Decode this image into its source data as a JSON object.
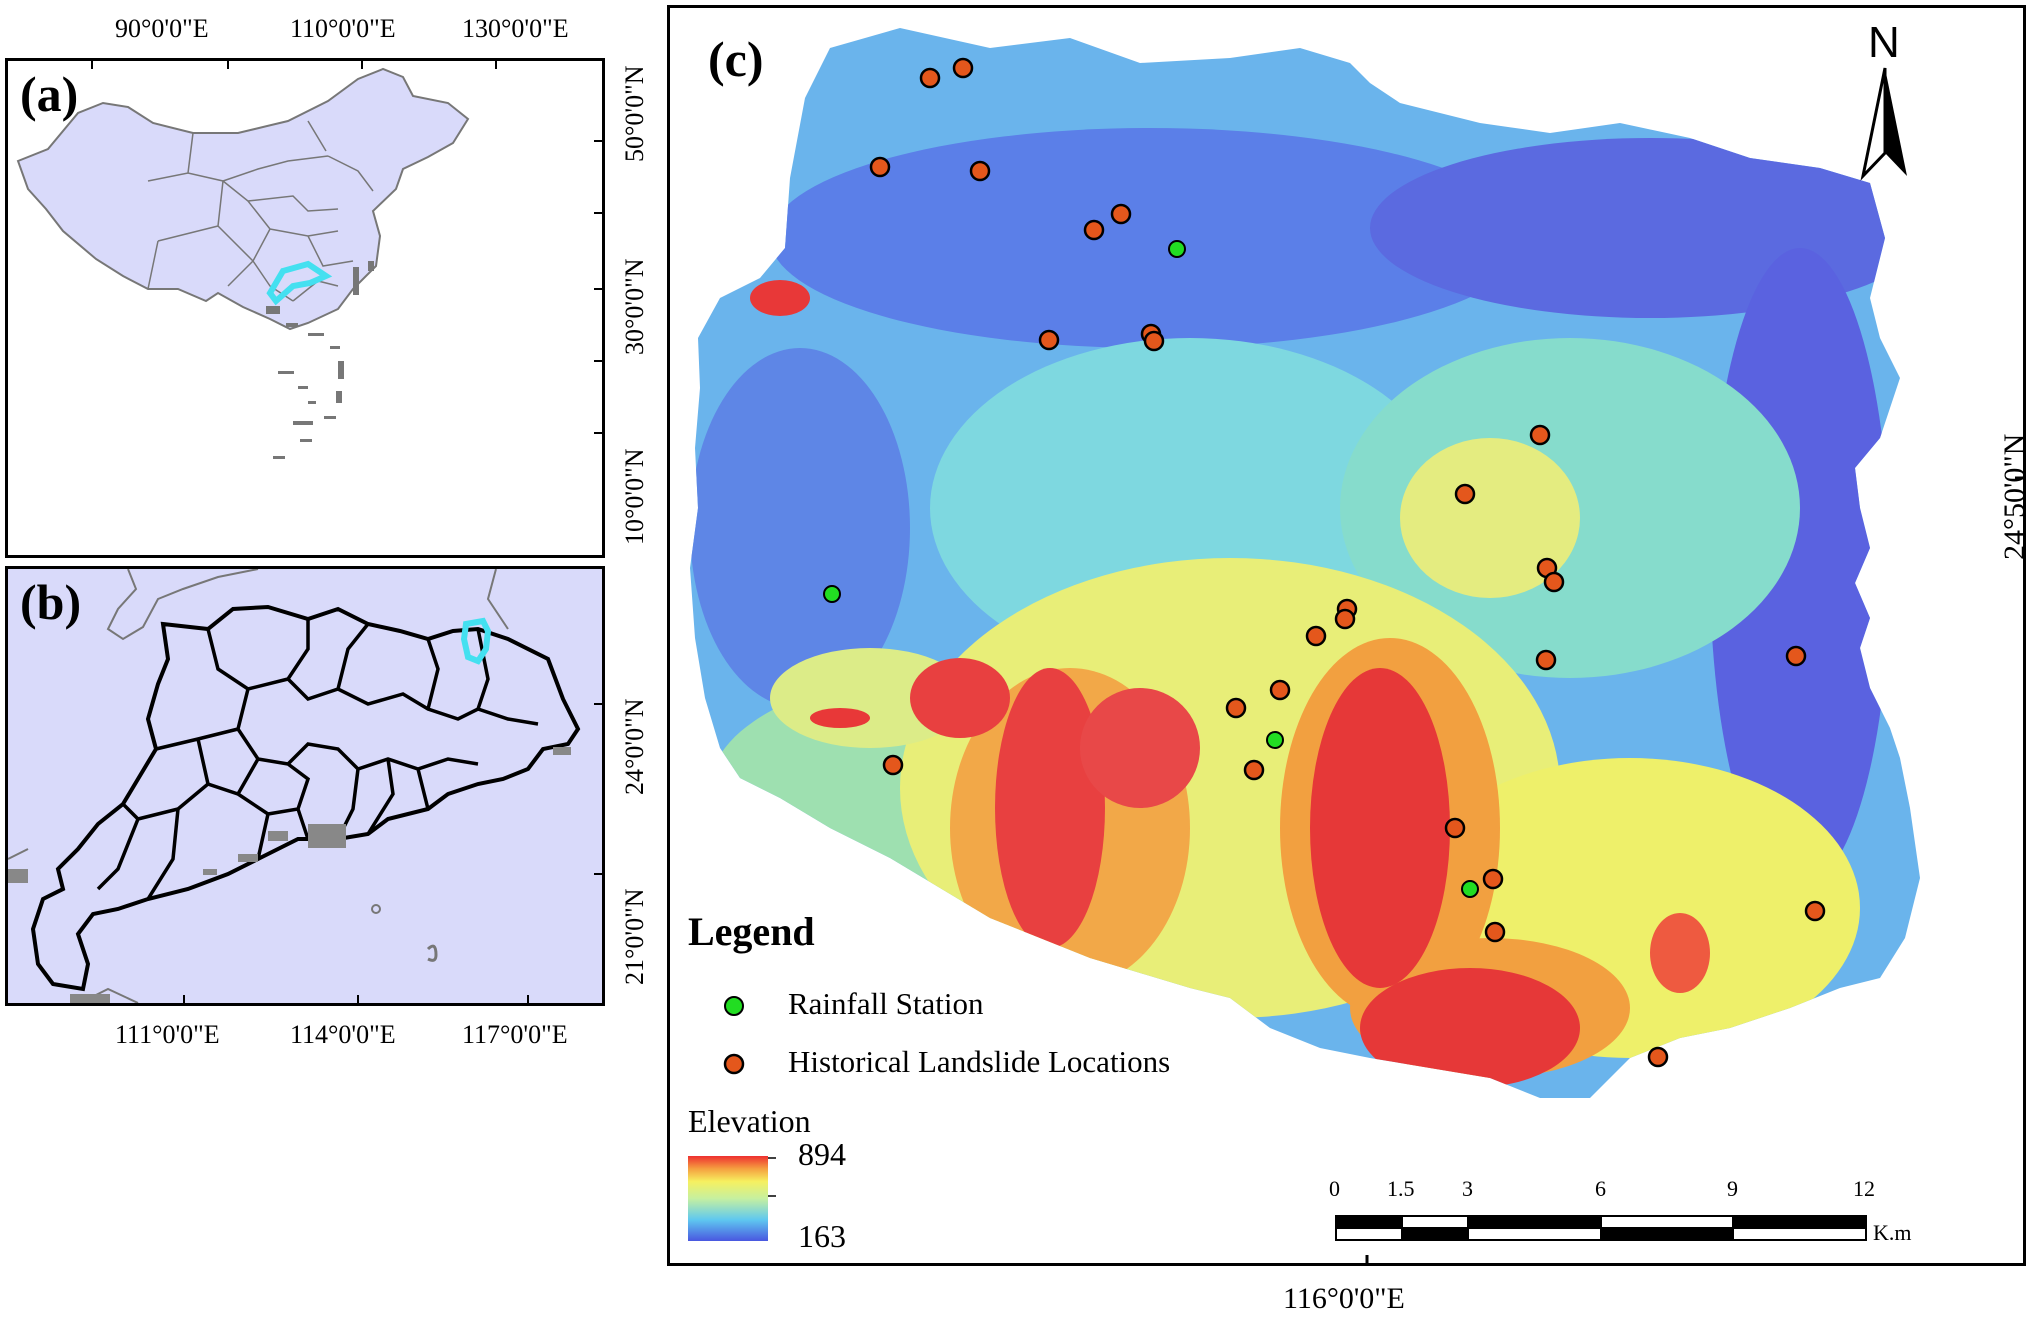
{
  "panel_a": {
    "label": "(a)",
    "top_ticks": [
      "90°0'0\"E",
      "110°0'0\"E",
      "130°0'0\"E"
    ],
    "right_ticks": [
      "50°0'0\"N",
      "30°0'0\"N",
      "10°0'0\"N"
    ]
  },
  "panel_b": {
    "label": "(b)",
    "bottom_ticks": [
      "111°0'0\"E",
      "114°0'0\"E",
      "117°0'0\"E"
    ],
    "right_ticks": [
      "24°0'0\"N",
      "21°0'0\"N"
    ]
  },
  "panel_c": {
    "label": "(c)",
    "north_label": "N",
    "right_tick": "24°50'0\"N",
    "bottom_tick": "116°0'0\"E",
    "legend": {
      "title": "Legend",
      "items": [
        {
          "label": "Rainfall Station",
          "color": "#22dd22"
        },
        {
          "label": "Historical Landslide Locations",
          "color": "#e4571c"
        }
      ]
    },
    "elevation": {
      "title": "Elevation",
      "max": "894",
      "min": "163"
    },
    "scalebar": {
      "ticks": [
        "0",
        "1.5",
        "3",
        "6",
        "9",
        "12"
      ],
      "unit": "K.m"
    }
  },
  "colors": {
    "land": "#d9dafa",
    "study_area": "#44e0f0",
    "landslide": "#e4571c",
    "station": "#22dd22"
  }
}
